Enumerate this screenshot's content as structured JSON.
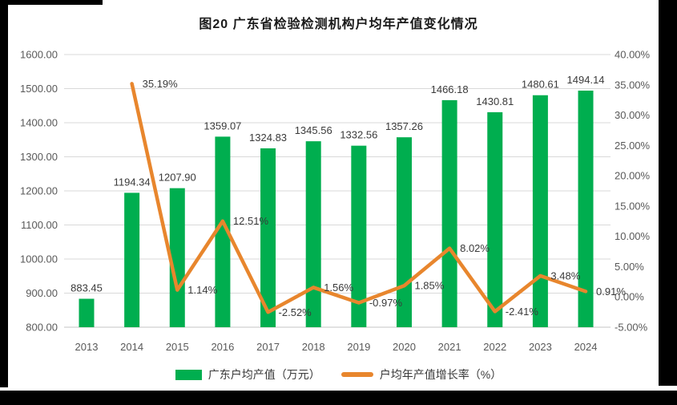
{
  "chart_data": {
    "type": "bar+line",
    "title": "图20 广东省检验检测机构户均年产值变化情况",
    "categories": [
      "2013",
      "2014",
      "2015",
      "2016",
      "2017",
      "2018",
      "2019",
      "2020",
      "2021",
      "2022",
      "2023",
      "2024"
    ],
    "series": [
      {
        "name": "广东户均产值（万元）",
        "type": "bar",
        "axis": "left",
        "color": "#00AE4F",
        "values": [
          883.45,
          1194.34,
          1207.9,
          1359.07,
          1324.83,
          1345.56,
          1332.56,
          1357.26,
          1466.18,
          1430.81,
          1480.61,
          1494.14
        ],
        "labels": [
          "883.45",
          "1194.34",
          "1207.90",
          "1359.07",
          "1324.83",
          "1345.56",
          "1332.56",
          "1357.26",
          "1466.18",
          "1430.81",
          "1480.61",
          "1494.14"
        ]
      },
      {
        "name": "户均年产值增长率（%）",
        "type": "line",
        "axis": "right",
        "color": "#E8862D",
        "values": [
          null,
          35.19,
          1.14,
          12.51,
          -2.52,
          1.56,
          -0.97,
          1.85,
          8.02,
          -2.41,
          3.48,
          0.91
        ],
        "labels": [
          null,
          "35.19%",
          "1.14%",
          "12.51%",
          "-2.52%",
          "1.56%",
          "-0.97%",
          "1.85%",
          "8.02%",
          "-2.41%",
          "3.48%",
          "0.91%"
        ]
      }
    ],
    "left_axis": {
      "min": 800,
      "max": 1600,
      "step": 100,
      "tick_labels": [
        "1600.00",
        "1500.00",
        "1400.00",
        "1300.00",
        "1200.00",
        "1100.00",
        "1000.00",
        "900.00",
        "800.00"
      ]
    },
    "right_axis": {
      "min": -5,
      "max": 40,
      "step": 5,
      "tick_labels": [
        "40.00%",
        "35.00%",
        "30.00%",
        "25.00%",
        "20.00%",
        "15.00%",
        "10.00%",
        "5.00%",
        "0.00%",
        "-5.00%"
      ]
    },
    "grid": true,
    "gridline_color": "#d9d9d9",
    "axisline_color": "#c6c6c6",
    "legend_position": "bottom"
  }
}
